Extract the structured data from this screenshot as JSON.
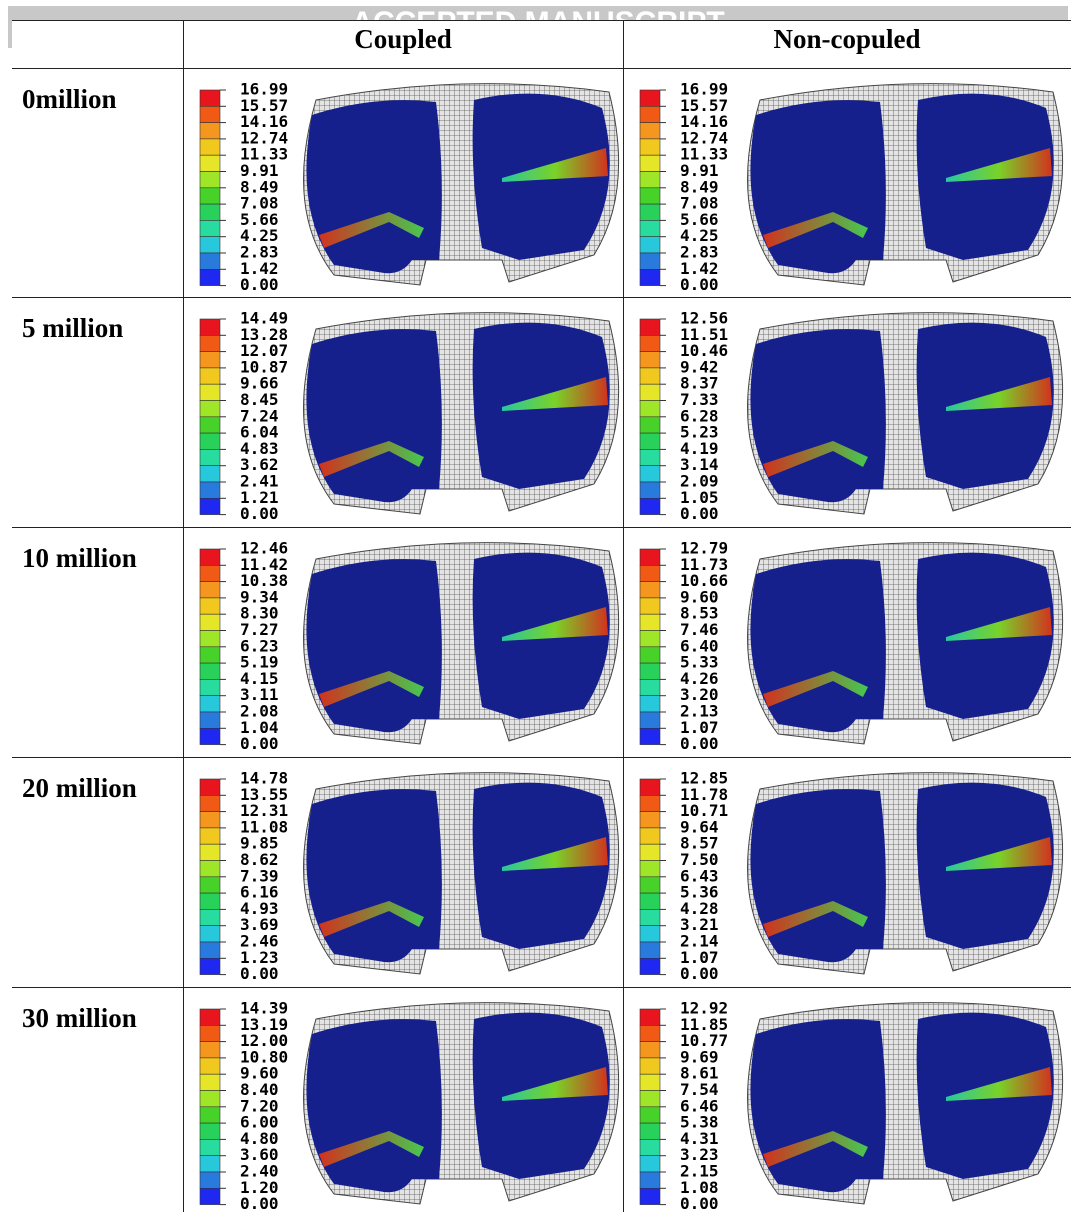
{
  "watermark": "ACCEPTED MANUSCRIPT",
  "columns": [
    "Coupled",
    "Non-copuled"
  ],
  "rows": [
    {
      "label": "0million",
      "cells": [
        {
          "legend": [
            "16.99",
            "15.57",
            "14.16",
            "12.74",
            "11.33",
            "9.91",
            "8.49",
            "7.08",
            "5.66",
            "4.25",
            "2.83",
            "1.42",
            "0.00"
          ]
        },
        {
          "legend": [
            "16.99",
            "15.57",
            "14.16",
            "12.74",
            "11.33",
            "9.91",
            "8.49",
            "7.08",
            "5.66",
            "4.25",
            "2.83",
            "1.42",
            "0.00"
          ]
        }
      ]
    },
    {
      "label": "5 million",
      "cells": [
        {
          "legend": [
            "14.49",
            "13.28",
            "12.07",
            "10.87",
            "9.66",
            "8.45",
            "7.24",
            "6.04",
            "4.83",
            "3.62",
            "2.41",
            "1.21",
            "0.00"
          ]
        },
        {
          "legend": [
            "12.56",
            "11.51",
            "10.46",
            "9.42",
            "8.37",
            "7.33",
            "6.28",
            "5.23",
            "4.19",
            "3.14",
            "2.09",
            "1.05",
            "0.00"
          ]
        }
      ]
    },
    {
      "label": "10 million",
      "cells": [
        {
          "legend": [
            "12.46",
            "11.42",
            "10.38",
            "9.34",
            "8.30",
            "7.27",
            "6.23",
            "5.19",
            "4.15",
            "3.11",
            "2.08",
            "1.04",
            "0.00"
          ]
        },
        {
          "legend": [
            "12.79",
            "11.73",
            "10.66",
            "9.60",
            "8.53",
            "7.46",
            "6.40",
            "5.33",
            "4.26",
            "3.20",
            "2.13",
            "1.07",
            "0.00"
          ]
        }
      ]
    },
    {
      "label": "20 million",
      "cells": [
        {
          "legend": [
            "14.78",
            "13.55",
            "12.31",
            "11.08",
            "9.85",
            "8.62",
            "7.39",
            "6.16",
            "4.93",
            "3.69",
            "2.46",
            "1.23",
            "0.00"
          ]
        },
        {
          "legend": [
            "12.85",
            "11.78",
            "10.71",
            "9.64",
            "8.57",
            "7.50",
            "6.43",
            "5.36",
            "4.28",
            "3.21",
            "2.14",
            "1.07",
            "0.00"
          ]
        }
      ]
    },
    {
      "label": "30 million",
      "cells": [
        {
          "legend": [
            "14.39",
            "13.19",
            "12.00",
            "10.80",
            "9.60",
            "8.40",
            "7.20",
            "6.00",
            "4.80",
            "3.60",
            "2.40",
            "1.20",
            "0.00"
          ]
        },
        {
          "legend": [
            "12.92",
            "11.85",
            "10.77",
            "9.69",
            "8.61",
            "7.54",
            "6.46",
            "5.38",
            "4.31",
            "3.23",
            "2.15",
            "1.08",
            "0.00"
          ]
        }
      ]
    }
  ]
}
